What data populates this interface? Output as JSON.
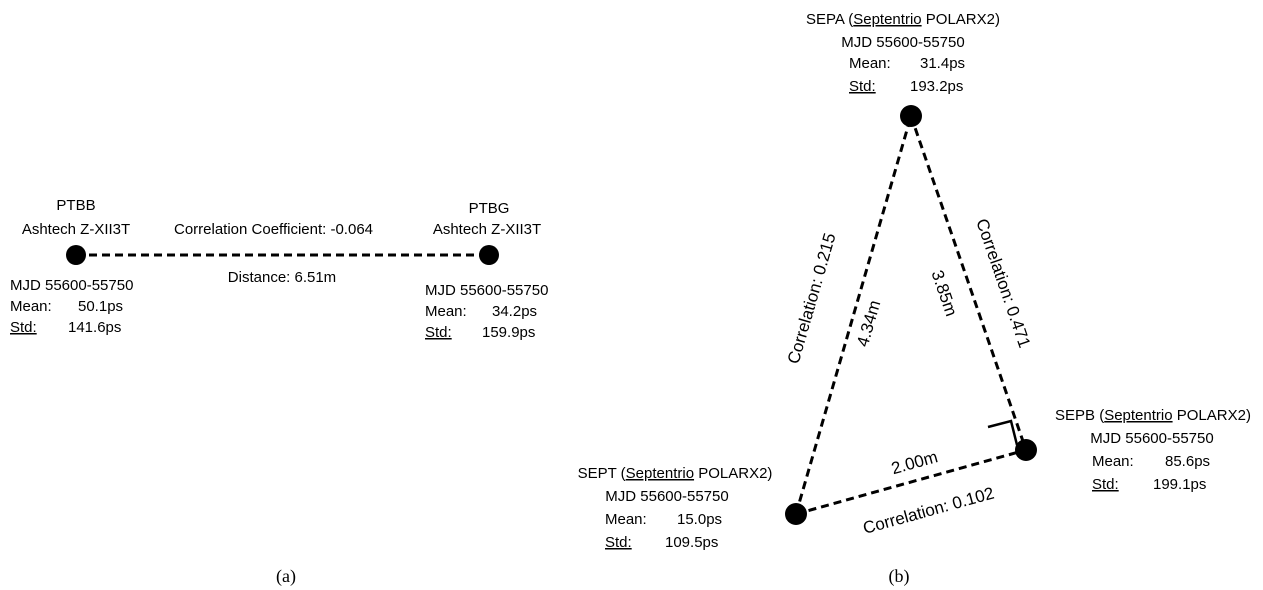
{
  "panel_a": {
    "caption": "(a)",
    "left_station": {
      "name": "PTBB",
      "receiver": "Ashtech Z-XII3T",
      "mjd": "MJD 55600-55750",
      "mean_label": "Mean:",
      "mean_value": "50.1ps",
      "std_label": "Std:",
      "std_value": "141.6ps"
    },
    "right_station": {
      "name": "PTBG",
      "receiver": "Ashtech Z-XII3T",
      "mjd": "MJD 55600-55750",
      "mean_label": "Mean:",
      "mean_value": "34.2ps",
      "std_label": "Std:",
      "std_value": "159.9ps"
    },
    "correlation_label": "Correlation Coefficient: ",
    "correlation_value": "-0.064",
    "distance": "Distance: 6.51m"
  },
  "panel_b": {
    "caption": "(b)",
    "top_station": {
      "name": "SEPA (",
      "vendor": "Septentrio",
      "receiver": " POLARX2)",
      "mjd": "MJD 55600-55750",
      "mean_label": "Mean:",
      "mean_value": "31.4ps",
      "std_label": "Std:",
      "std_value": "193.2ps"
    },
    "left_station": {
      "name": "SEPT (",
      "vendor": "Septentrio",
      "receiver": " POLARX2)",
      "mjd": "MJD 55600-55750",
      "mean_label": "Mean:",
      "mean_value": "15.0ps",
      "std_label": "Std:",
      "std_value": "109.5ps"
    },
    "right_station": {
      "name": "SEPB (",
      "vendor": "Septentrio",
      "receiver": " POLARX2)",
      "mjd": "MJD 55600-55750",
      "mean_label": "Mean:",
      "mean_value": "85.6ps",
      "std_label": "Std:",
      "std_value": "199.1ps"
    },
    "edge_left": {
      "label": "Correlation: ",
      "value": "0.215",
      "distance": "4.34m"
    },
    "edge_right": {
      "label": "Correlation: ",
      "value": "0.471",
      "distance": "3.85m"
    },
    "edge_bottom": {
      "label": "Correlation: ",
      "value": "0.102",
      "distance": "2.00m"
    }
  },
  "colors": {
    "highlight": "#e0161a",
    "line": "#000000",
    "node": "#000000"
  }
}
